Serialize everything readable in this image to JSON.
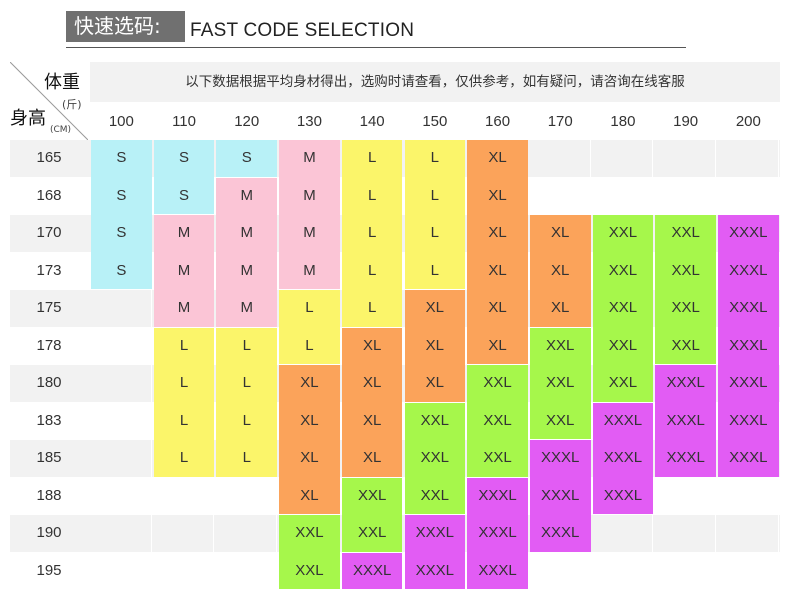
{
  "header": {
    "title_cn": "快速选码:",
    "title_en": "FAST CODE SELECTION"
  },
  "corner": {
    "weight_label": "体重",
    "weight_unit": "(斤)",
    "height_label": "身高",
    "height_unit": "(CM)"
  },
  "note": "以下数据根据平均身材得出，选购时请查看，仅供参考，如有疑问，请咨询在线客服",
  "weights": [
    "100",
    "110",
    "120",
    "130",
    "140",
    "150",
    "160",
    "170",
    "180",
    "190",
    "200"
  ],
  "heights": [
    "165",
    "168",
    "170",
    "173",
    "175",
    "178",
    "180",
    "183",
    "185",
    "188",
    "190",
    "195"
  ],
  "colors": {
    "S": "#b8f1f7",
    "M": "#fbc5d6",
    "L": "#fbf56a",
    "XL": "#fba35a",
    "XXL": "#a6f74b",
    "XXXL": "#e25cf4",
    "row_gray": "#f2f2f2",
    "row_white": "#ffffff"
  },
  "columns": [
    {
      "weight": "100",
      "blocks": [
        {
          "size": "S",
          "rows": 4,
          "labels": [
            "S",
            "S",
            "S",
            "S"
          ]
        }
      ]
    },
    {
      "weight": "110",
      "blocks": [
        {
          "size": "S",
          "rows": 2,
          "labels": [
            "S",
            "S"
          ]
        },
        {
          "size": "M",
          "rows": 3,
          "labels": [
            "M",
            "M",
            "M"
          ]
        },
        {
          "size": "L",
          "rows": 4,
          "labels": [
            "L",
            "L",
            "L",
            "L"
          ]
        }
      ]
    },
    {
      "weight": "120",
      "blocks": [
        {
          "size": "S",
          "rows": 1,
          "labels": [
            "S"
          ]
        },
        {
          "size": "M",
          "rows": 4,
          "labels": [
            "M",
            "M",
            "M",
            "M"
          ]
        },
        {
          "size": "L",
          "rows": 4,
          "labels": [
            "L",
            "L",
            "L",
            "L"
          ]
        }
      ]
    },
    {
      "weight": "130",
      "blocks": [
        {
          "size": "M",
          "rows": 4,
          "labels": [
            "M",
            "M",
            "M",
            "M"
          ]
        },
        {
          "size": "L",
          "rows": 2,
          "labels": [
            "L",
            "L"
          ]
        },
        {
          "size": "XL",
          "rows": 4,
          "labels": [
            "XL",
            "XL",
            "XL",
            "XL"
          ]
        },
        {
          "size": "XXL",
          "rows": 2,
          "labels": [
            "XXL",
            "XXL"
          ]
        }
      ]
    },
    {
      "weight": "140",
      "blocks": [
        {
          "size": "L",
          "rows": 5,
          "labels": [
            "L",
            "L",
            "L",
            "L",
            "L"
          ]
        },
        {
          "size": "XL",
          "rows": 4,
          "labels": [
            "XL",
            "XL",
            "XL",
            "XL"
          ]
        },
        {
          "size": "XXL",
          "rows": 2,
          "labels": [
            "XXL",
            "XXL"
          ]
        },
        {
          "size": "XXXL",
          "rows": 1,
          "labels": [
            "XXXL"
          ]
        }
      ]
    },
    {
      "weight": "150",
      "blocks": [
        {
          "size": "L",
          "rows": 4,
          "labels": [
            "L",
            "L",
            "L",
            "L"
          ]
        },
        {
          "size": "XL",
          "rows": 3,
          "labels": [
            "XL",
            "XL",
            "XL"
          ]
        },
        {
          "size": "XXL",
          "rows": 3,
          "labels": [
            "XXL",
            "XXL",
            "XXL"
          ]
        },
        {
          "size": "XXXL",
          "rows": 2,
          "labels": [
            "XXXL",
            "XXXL"
          ]
        }
      ]
    },
    {
      "weight": "160",
      "blocks": [
        {
          "size": "XL",
          "rows": 6,
          "labels": [
            "XL",
            "XL",
            "XL",
            "XL",
            "XL",
            "XL"
          ]
        },
        {
          "size": "XXL",
          "rows": 3,
          "labels": [
            "XXL",
            "XXL",
            "XXL"
          ]
        },
        {
          "size": "XXXL",
          "rows": 3,
          "labels": [
            "XXXL",
            "XXXL",
            "XXXL"
          ]
        }
      ]
    },
    {
      "weight": "170",
      "blocks": [
        {
          "size": "",
          "rows": 2,
          "labels": []
        },
        {
          "size": "XL",
          "rows": 3,
          "labels": [
            "XL",
            "XL",
            "XL"
          ]
        },
        {
          "size": "XXL",
          "rows": 3,
          "labels": [
            "XXL",
            "XXL",
            "XXL"
          ]
        },
        {
          "size": "XXXL",
          "rows": 3,
          "labels": [
            "XXXL",
            "XXXL",
            "XXXL"
          ]
        }
      ]
    },
    {
      "weight": "180",
      "blocks": [
        {
          "size": "",
          "rows": 2,
          "labels": []
        },
        {
          "size": "XXL",
          "rows": 5,
          "labels": [
            "XXL",
            "XXL",
            "XXL",
            "XXL",
            "XXL"
          ]
        },
        {
          "size": "XXXL",
          "rows": 3,
          "labels": [
            "XXXL",
            "XXXL",
            "XXXL"
          ]
        }
      ]
    },
    {
      "weight": "190",
      "blocks": [
        {
          "size": "",
          "rows": 2,
          "labels": []
        },
        {
          "size": "XXL",
          "rows": 4,
          "labels": [
            "XXL",
            "XXL",
            "XXL",
            "XXL"
          ]
        },
        {
          "size": "XXXL",
          "rows": 3,
          "labels": [
            "XXXL",
            "XXXL",
            "XXXL"
          ]
        }
      ]
    },
    {
      "weight": "200",
      "blocks": [
        {
          "size": "",
          "rows": 2,
          "labels": []
        },
        {
          "size": "XXXL",
          "rows": 7,
          "labels": [
            "XXXL",
            "XXXL",
            "XXXL",
            "XXXL",
            "XXXL",
            "XXXL",
            "XXXL"
          ]
        }
      ]
    }
  ]
}
